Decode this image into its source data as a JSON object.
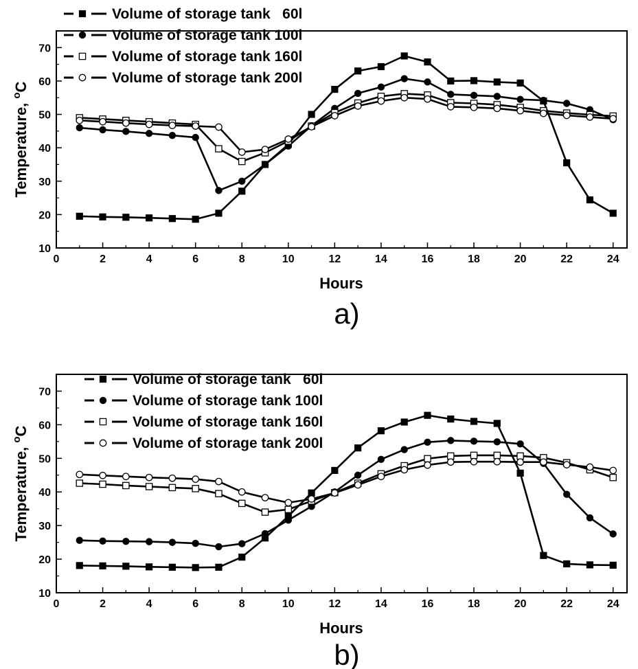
{
  "chart_data": [
    {
      "type": "line",
      "panel_label": "a)",
      "xlabel": "Hours",
      "ylabel_main": "Temperature, ",
      "ylabel_sup": "o",
      "ylabel_unit": "C",
      "xlim": [
        0,
        24.6
      ],
      "ylim": [
        10,
        75
      ],
      "xticks": [
        0,
        2,
        4,
        6,
        8,
        10,
        12,
        14,
        16,
        18,
        20,
        22,
        24
      ],
      "yticks": [
        10,
        20,
        30,
        40,
        50,
        60,
        70
      ],
      "legend_position": "top-left",
      "x": [
        1,
        2,
        3,
        4,
        5,
        6,
        7,
        8,
        9,
        10,
        11,
        12,
        13,
        14,
        15,
        16,
        17,
        18,
        19,
        20,
        21,
        22,
        23,
        24
      ],
      "series": [
        {
          "name": "Volume of storage tank   60l",
          "marker": "filled-square",
          "values": [
            19.5,
            19.3,
            19.2,
            19.0,
            18.8,
            18.6,
            20.4,
            27.0,
            35.0,
            41.0,
            50.0,
            57.5,
            63.0,
            64.3,
            67.5,
            65.7,
            60.0,
            60.1,
            59.7,
            59.4,
            54.0,
            35.5,
            24.4,
            20.4
          ]
        },
        {
          "name": "Volume of storage tank 100l",
          "marker": "filled-circle",
          "values": [
            46.0,
            45.4,
            44.9,
            44.3,
            43.7,
            43.1,
            27.2,
            30.0,
            35.0,
            40.5,
            46.6,
            51.8,
            56.3,
            58.2,
            60.7,
            59.7,
            56.0,
            55.7,
            55.4,
            54.5,
            54.2,
            53.3,
            51.4,
            48.4
          ]
        },
        {
          "name": "Volume of storage tank 160l",
          "marker": "open-square",
          "values": [
            49.0,
            48.6,
            48.2,
            47.8,
            47.4,
            47.0,
            39.7,
            35.9,
            38.5,
            42.0,
            46.5,
            50.5,
            53.4,
            55.4,
            56.2,
            55.8,
            53.5,
            53.3,
            52.9,
            52.1,
            51.1,
            50.4,
            49.9,
            49.5
          ]
        },
        {
          "name": "Volume of storage tank 200l",
          "marker": "open-circle",
          "values": [
            48.2,
            47.8,
            47.4,
            47.0,
            46.7,
            46.5,
            46.2,
            38.7,
            39.5,
            42.6,
            46.3,
            49.6,
            52.5,
            54.0,
            55.0,
            54.6,
            52.3,
            52.1,
            51.8,
            51.1,
            50.3,
            49.7,
            49.2,
            48.7
          ]
        }
      ]
    },
    {
      "type": "line",
      "panel_label": "b)",
      "xlabel": "Hours",
      "ylabel_main": "Temperature, ",
      "ylabel_sup": "o",
      "ylabel_unit": "C",
      "xlim": [
        0,
        24.6
      ],
      "ylim": [
        10,
        75
      ],
      "xticks": [
        0,
        2,
        4,
        6,
        8,
        10,
        12,
        14,
        16,
        18,
        20,
        22,
        24
      ],
      "yticks": [
        10,
        20,
        30,
        40,
        50,
        60,
        70
      ],
      "legend_position": "top-left",
      "x": [
        1,
        2,
        3,
        4,
        5,
        6,
        7,
        8,
        9,
        10,
        11,
        12,
        13,
        14,
        15,
        16,
        17,
        18,
        19,
        20,
        21,
        22,
        23,
        24
      ],
      "series": [
        {
          "name": "Volume of storage tank   60l",
          "marker": "filled-square",
          "values": [
            18.1,
            18.0,
            17.9,
            17.7,
            17.6,
            17.5,
            17.6,
            20.6,
            26.3,
            32.8,
            39.7,
            46.4,
            53.1,
            58.2,
            60.8,
            62.8,
            61.7,
            61.0,
            60.4,
            45.6,
            21.1,
            18.6,
            18.3,
            18.2
          ]
        },
        {
          "name": "Volume of storage tank 100l",
          "marker": "filled-circle",
          "values": [
            25.6,
            25.4,
            25.3,
            25.2,
            25.0,
            24.7,
            23.7,
            24.6,
            27.6,
            31.6,
            35.7,
            40.0,
            45.0,
            49.7,
            52.6,
            54.8,
            55.3,
            55.1,
            54.9,
            54.3,
            48.5,
            39.3,
            32.3,
            27.5
          ]
        },
        {
          "name": "Volume of storage tank 160l",
          "marker": "open-square",
          "values": [
            42.6,
            42.3,
            41.9,
            41.6,
            41.3,
            41.0,
            39.5,
            36.6,
            34.0,
            34.8,
            37.3,
            39.8,
            42.6,
            45.4,
            47.8,
            49.9,
            50.7,
            50.9,
            50.9,
            50.7,
            50.2,
            48.7,
            46.6,
            44.3
          ]
        },
        {
          "name": "Volume of storage tank 200l",
          "marker": "open-circle",
          "values": [
            45.2,
            44.9,
            44.6,
            44.3,
            44.1,
            43.8,
            43.1,
            40.0,
            38.3,
            36.8,
            37.9,
            39.7,
            42.1,
            44.6,
            46.6,
            48.0,
            48.9,
            49.0,
            49.0,
            48.9,
            48.9,
            48.1,
            47.4,
            46.4
          ]
        }
      ]
    }
  ]
}
